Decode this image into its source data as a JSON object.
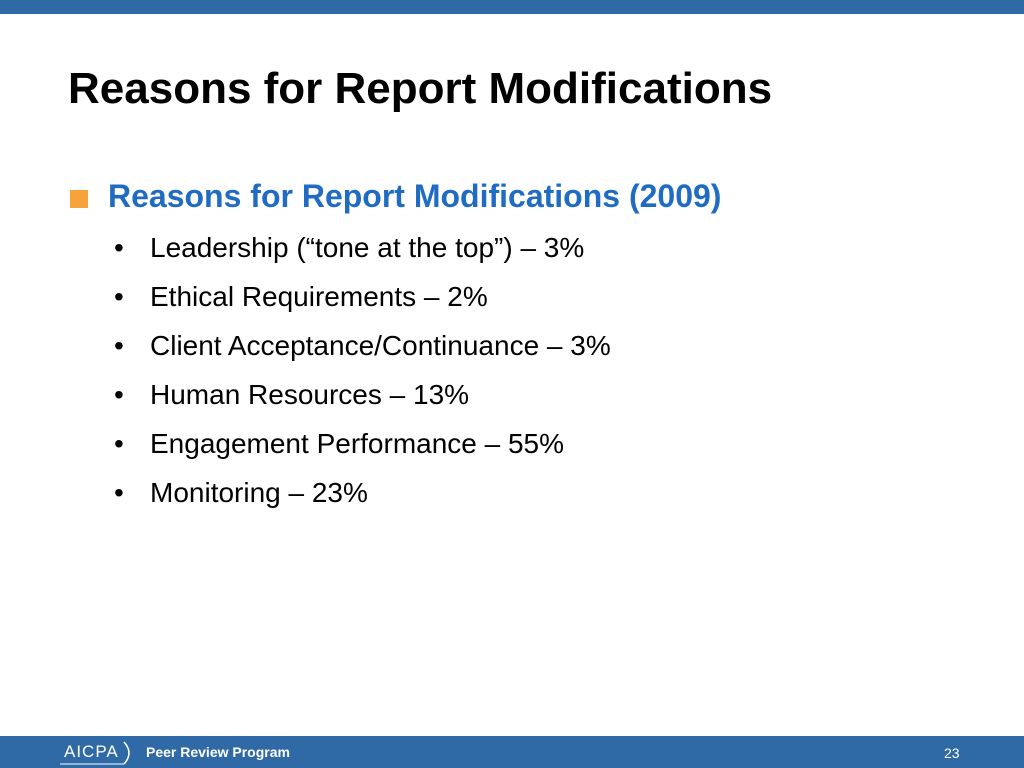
{
  "header": {
    "title": "Reasons for Report Modifications"
  },
  "section": {
    "heading": "Reasons for Report Modifications (2009)",
    "items": [
      "Leadership (“tone at the top”) – 3%",
      "Ethical Requirements – 2%",
      "Client Acceptance/Continuance – 3%",
      "Human Resources – 13%",
      "Engagement Performance – 55%",
      "Monitoring – 23%"
    ]
  },
  "footer": {
    "logo": "AICPA",
    "program": "Peer Review Program",
    "page": "23"
  }
}
